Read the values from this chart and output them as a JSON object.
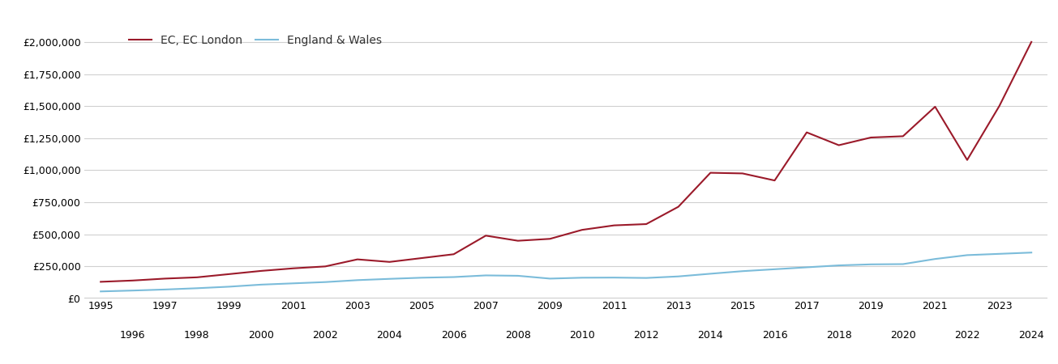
{
  "legend_labels": [
    "EC, EC London",
    "England & Wales"
  ],
  "ec_years": [
    1995,
    1996,
    1997,
    1998,
    1999,
    2000,
    2001,
    2002,
    2003,
    2004,
    2005,
    2006,
    2007,
    2008,
    2009,
    2010,
    2011,
    2012,
    2013,
    2014,
    2015,
    2016,
    2017,
    2018,
    2019,
    2020,
    2021,
    2022,
    2023,
    2024
  ],
  "ec_values": [
    130000,
    140000,
    155000,
    165000,
    190000,
    215000,
    235000,
    250000,
    305000,
    285000,
    315000,
    345000,
    490000,
    450000,
    465000,
    535000,
    570000,
    580000,
    715000,
    980000,
    975000,
    920000,
    1295000,
    1195000,
    1255000,
    1265000,
    1495000,
    1080000,
    1500000,
    2000000
  ],
  "ew_years": [
    1995,
    1996,
    1997,
    1998,
    1999,
    2000,
    2001,
    2002,
    2003,
    2004,
    2005,
    2006,
    2007,
    2008,
    2009,
    2010,
    2011,
    2012,
    2013,
    2014,
    2015,
    2016,
    2017,
    2018,
    2019,
    2020,
    2021,
    2022,
    2023,
    2024
  ],
  "ew_values": [
    55000,
    62000,
    70000,
    80000,
    92000,
    108000,
    118000,
    128000,
    143000,
    153000,
    162000,
    167000,
    180000,
    177000,
    155000,
    162000,
    163000,
    160000,
    172000,
    193000,
    213000,
    228000,
    243000,
    258000,
    266000,
    268000,
    308000,
    338000,
    348000,
    358000
  ],
  "ylim": [
    0,
    2100000
  ],
  "yticks": [
    0,
    250000,
    500000,
    750000,
    1000000,
    1250000,
    1500000,
    1750000,
    2000000
  ],
  "xlim": [
    1994.5,
    2024.5
  ],
  "background_color": "#ffffff",
  "grid_color": "#d0d0d0",
  "ec_line_color": "#9b1a2a",
  "ew_line_color": "#7bbcda",
  "line_width": 1.5,
  "odd_years": [
    1995,
    1997,
    1999,
    2001,
    2003,
    2005,
    2007,
    2009,
    2011,
    2013,
    2015,
    2017,
    2019,
    2021,
    2023
  ],
  "even_years": [
    1996,
    1998,
    2000,
    2002,
    2004,
    2006,
    2008,
    2010,
    2012,
    2014,
    2016,
    2018,
    2020,
    2022,
    2024
  ]
}
